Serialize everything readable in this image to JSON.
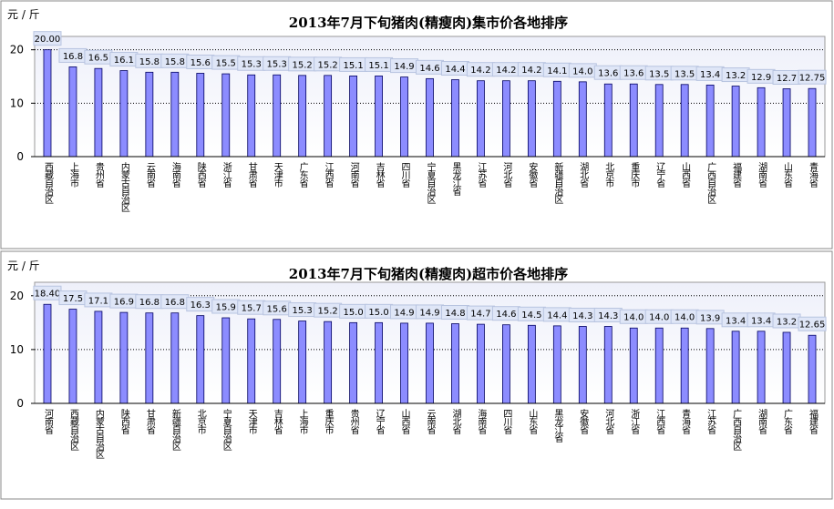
{
  "chart_data": [
    {
      "type": "bar",
      "title": "2013年7月下旬猪肉(精瘦肉)集市价各地排序",
      "y_label": "元 / 斤",
      "categories": [
        "西藏自治区",
        "上海市",
        "贵州省",
        "内蒙古自治区",
        "云南省",
        "海南省",
        "陕西省",
        "浙江省",
        "甘肃省",
        "天津市",
        "广东省",
        "江西省",
        "河南省",
        "吉林省",
        "四川省",
        "宁夏自治区",
        "黑龙江省",
        "江苏省",
        "河北省",
        "安徽省",
        "新疆自治区",
        "湖北省",
        "北京市",
        "重庆市",
        "辽宁省",
        "山西省",
        "广西自治区",
        "福建省",
        "湖南省",
        "山东省",
        "青海省"
      ],
      "values": [
        20.0,
        16.8,
        16.5,
        16.1,
        15.8,
        15.8,
        15.6,
        15.5,
        15.3,
        15.3,
        15.2,
        15.2,
        15.1,
        15.1,
        14.9,
        14.6,
        14.4,
        14.2,
        14.2,
        14.2,
        14.1,
        14.0,
        13.6,
        13.6,
        13.5,
        13.5,
        13.4,
        13.2,
        12.9,
        12.7,
        12.75
      ],
      "value_labels": [
        "20.00",
        "16.8",
        "16.5",
        "16.1",
        "15.8",
        "15.8",
        "15.6",
        "15.5",
        "15.3",
        "15.3",
        "15.2",
        "15.2",
        "15.1",
        "15.1",
        "14.9",
        "14.6",
        "14.4",
        "14.2",
        "14.2",
        "14.2",
        "14.1",
        "14.0",
        "13.6",
        "13.6",
        "13.5",
        "13.5",
        "13.4",
        "13.2",
        "12.9",
        "12.7",
        "12.75"
      ],
      "color": "#8c8cff",
      "ylim": [
        0,
        22.5
      ],
      "yticks": [
        0,
        10,
        20
      ],
      "grid": true
    },
    {
      "type": "bar",
      "title": "2013年7月下旬猪肉(精瘦肉)超市价各地排序",
      "y_label": "元 / 斤",
      "categories": [
        "河南省",
        "西藏自治区",
        "内蒙古自治区",
        "陕西省",
        "甘肃省",
        "新疆自治区",
        "北京市",
        "宁夏自治区",
        "天津市",
        "吉林省",
        "上海市",
        "重庆市",
        "贵州省",
        "辽宁省",
        "山西省",
        "云南省",
        "湖北省",
        "海南省",
        "四川省",
        "山东省",
        "黑龙江省",
        "安徽省",
        "河北省",
        "浙江省",
        "江西省",
        "青海省",
        "江苏省",
        "广西自治区",
        "湖南省",
        "广东省",
        "福建省"
      ],
      "values": [
        18.4,
        17.5,
        17.1,
        16.9,
        16.8,
        16.8,
        16.3,
        15.9,
        15.7,
        15.6,
        15.3,
        15.2,
        15.0,
        15.0,
        14.9,
        14.9,
        14.8,
        14.7,
        14.6,
        14.5,
        14.4,
        14.3,
        14.3,
        14.0,
        14.0,
        14.0,
        13.9,
        13.4,
        13.4,
        13.2,
        12.65
      ],
      "value_labels": [
        "18.40",
        "17.5",
        "17.1",
        "16.9",
        "16.8",
        "16.8",
        "16.3",
        "15.9",
        "15.7",
        "15.6",
        "15.3",
        "15.2",
        "15.0",
        "15.0",
        "14.9",
        "14.9",
        "14.8",
        "14.7",
        "14.6",
        "14.5",
        "14.4",
        "14.3",
        "14.3",
        "14.0",
        "14.0",
        "14.0",
        "13.9",
        "13.4",
        "13.4",
        "13.2",
        "12.65"
      ],
      "color": "#8c8cff",
      "ylim": [
        0,
        22.5
      ],
      "yticks": [
        0,
        10,
        20
      ],
      "grid": true
    }
  ]
}
